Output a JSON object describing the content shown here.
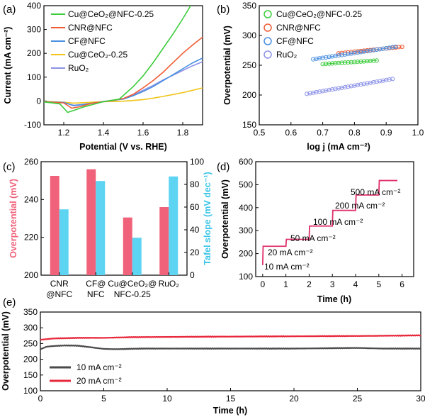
{
  "chart_data": [
    {
      "panel": "(a)",
      "type": "line",
      "title": "",
      "xlabel": "Potential (V vs. RHE)",
      "ylabel": "Current (mA cm⁻²)",
      "xlim": [
        1.1,
        1.9
      ],
      "ylim": [
        -100,
        400
      ],
      "xticks": [
        "1.2",
        "1.4",
        "1.6",
        "1.8"
      ],
      "yticks": [
        "-100",
        "0",
        "100",
        "200",
        "300",
        "400"
      ],
      "legend": "top-left",
      "series": [
        {
          "name": "Cu@CeO₂@NFC-0.25",
          "color": "#3ccc3c",
          "points": [
            [
              1.1,
              -4
            ],
            [
              1.18,
              -12
            ],
            [
              1.22,
              -48
            ],
            [
              1.25,
              -40
            ],
            [
              1.3,
              -25
            ],
            [
              1.4,
              -3
            ],
            [
              1.48,
              8
            ],
            [
              1.55,
              60
            ],
            [
              1.6,
              105
            ],
            [
              1.65,
              160
            ],
            [
              1.7,
              220
            ],
            [
              1.75,
              280
            ],
            [
              1.8,
              345
            ],
            [
              1.84,
              400
            ]
          ]
        },
        {
          "name": "CNR@NFC",
          "color": "#f05c34",
          "points": [
            [
              1.1,
              -3
            ],
            [
              1.2,
              -8
            ],
            [
              1.24,
              -30
            ],
            [
              1.28,
              -24
            ],
            [
              1.35,
              -8
            ],
            [
              1.45,
              3
            ],
            [
              1.5,
              10
            ],
            [
              1.55,
              28
            ],
            [
              1.6,
              55
            ],
            [
              1.65,
              85
            ],
            [
              1.7,
              120
            ],
            [
              1.75,
              160
            ],
            [
              1.8,
              200
            ],
            [
              1.85,
              235
            ],
            [
              1.9,
              268
            ]
          ]
        },
        {
          "name": "CF@NFC",
          "color": "#4a8fe0",
          "points": [
            [
              1.1,
              -3
            ],
            [
              1.2,
              -6
            ],
            [
              1.25,
              -20
            ],
            [
              1.3,
              -15
            ],
            [
              1.4,
              -2
            ],
            [
              1.5,
              8
            ],
            [
              1.55,
              22
            ],
            [
              1.6,
              40
            ],
            [
              1.65,
              60
            ],
            [
              1.7,
              85
            ],
            [
              1.75,
              110
            ],
            [
              1.8,
              135
            ],
            [
              1.85,
              160
            ],
            [
              1.9,
              180
            ]
          ]
        },
        {
          "name": "Cu@CeO₂-0.25",
          "color": "#f0c419",
          "points": [
            [
              1.1,
              -2
            ],
            [
              1.2,
              -5
            ],
            [
              1.25,
              -9
            ],
            [
              1.3,
              -7
            ],
            [
              1.4,
              -3
            ],
            [
              1.5,
              -1
            ],
            [
              1.55,
              2
            ],
            [
              1.6,
              6
            ],
            [
              1.65,
              12
            ],
            [
              1.7,
              19
            ],
            [
              1.75,
              27
            ],
            [
              1.8,
              35
            ],
            [
              1.85,
              45
            ],
            [
              1.9,
              55
            ]
          ]
        },
        {
          "name": "RuO₂",
          "color": "#8c92e8",
          "points": [
            [
              1.1,
              -3
            ],
            [
              1.2,
              -7
            ],
            [
              1.25,
              -18
            ],
            [
              1.3,
              -14
            ],
            [
              1.4,
              -3
            ],
            [
              1.45,
              2
            ],
            [
              1.5,
              10
            ],
            [
              1.55,
              25
            ],
            [
              1.6,
              45
            ],
            [
              1.65,
              65
            ],
            [
              1.7,
              88
            ],
            [
              1.75,
              108
            ],
            [
              1.8,
              128
            ],
            [
              1.85,
              148
            ],
            [
              1.9,
              165
            ]
          ]
        }
      ]
    },
    {
      "panel": "(b)",
      "type": "scatter",
      "title": "",
      "xlabel": "log j (mA cm⁻²)",
      "ylabel": "Overpotential (mV)",
      "xlim": [
        0.5,
        1.0
      ],
      "ylim": [
        150,
        350
      ],
      "xticks": [
        "0.5",
        "0.6",
        "0.7",
        "0.8",
        "0.9",
        "1.0"
      ],
      "yticks": [
        "150",
        "200",
        "250",
        "300",
        "350"
      ],
      "legend": "top-right",
      "series": [
        {
          "name": "Cu@CeO₂@NFC-0.25",
          "color": "#3ccc3c",
          "x_range": [
            0.7,
            0.87
          ],
          "y_range": [
            252,
            258
          ]
        },
        {
          "name": "CNR@NFC",
          "color": "#f05c34",
          "x_range": [
            0.75,
            0.95
          ],
          "y_range": [
            270,
            281
          ]
        },
        {
          "name": "CF@NFC",
          "color": "#4a8fe0",
          "x_range": [
            0.67,
            0.93
          ],
          "y_range": [
            260,
            281
          ]
        },
        {
          "name": "RuO₂",
          "color": "#8c92e8",
          "x_range": [
            0.65,
            0.92
          ],
          "y_range": [
            202,
            227
          ]
        }
      ]
    },
    {
      "panel": "(c)",
      "type": "bar",
      "title": "",
      "categories": [
        [
          "CNR",
          "@NFC"
        ],
        [
          "CF@",
          "NFC"
        ],
        [
          "Cu@CeO₂@",
          "NFC-0.25"
        ],
        [
          "RuO₂"
        ]
      ],
      "ylabel": "Overpotential (mV)",
      "y2label": "Tafel slope (mV dec⁻¹)",
      "ylim": [
        200,
        260
      ],
      "y2lim": [
        0,
        100
      ],
      "yticks": [
        "200",
        "220",
        "240",
        "260"
      ],
      "y2ticks": [
        "0",
        "20",
        "40",
        "60",
        "80",
        "100"
      ],
      "series": [
        {
          "name": "Overpotential",
          "axis": "left",
          "color": "#f0627a",
          "values": [
            252.5,
            256,
            230.5,
            236
          ]
        },
        {
          "name": "Tafel slope",
          "axis": "right",
          "color": "#5dd4f2",
          "values": [
            58,
            83,
            33,
            87
          ]
        }
      ]
    },
    {
      "panel": "(d)",
      "type": "line",
      "title": "",
      "xlabel": "Time (h)",
      "ylabel": "Overpotential (mV)",
      "xlim": [
        -0.3,
        6.5
      ],
      "ylim": [
        100,
        600
      ],
      "xticks": [
        "0",
        "1",
        "2",
        "3",
        "4",
        "5",
        "6"
      ],
      "yticks": [
        "100",
        "200",
        "300",
        "400",
        "500",
        "600"
      ],
      "color": "#e0306a",
      "steps": [
        {
          "t0": 0,
          "t1": 1,
          "value": 232,
          "label": "10 mA cm⁻²"
        },
        {
          "t0": 1,
          "t1": 2,
          "value": 262,
          "label": "20 mA cm⁻²"
        },
        {
          "t0": 2,
          "t1": 3,
          "value": 320,
          "label": "50 mA cm⁻²"
        },
        {
          "t0": 3,
          "t1": 4,
          "value": 388,
          "label": "100 mA cm⁻²"
        },
        {
          "t0": 4,
          "t1": 5,
          "value": 455,
          "label": "200 mA cm⁻²"
        },
        {
          "t0": 5,
          "t1": 5.8,
          "value": 518,
          "label": "500 mA cm⁻²"
        }
      ],
      "start_value": 150
    },
    {
      "panel": "(e)",
      "type": "line",
      "title": "",
      "xlabel": "Time (h)",
      "ylabel": "Overpotential (mV)",
      "xlim": [
        0,
        30
      ],
      "ylim": [
        100,
        350
      ],
      "xticks": [
        "0",
        "5",
        "10",
        "15",
        "20",
        "25",
        "30"
      ],
      "yticks": [
        "100",
        "150",
        "200",
        "250",
        "300",
        "350"
      ],
      "legend": "bottom-left",
      "series": [
        {
          "name": "10 mA cm⁻²",
          "color": "#4a4a4a",
          "points": [
            [
              0,
              232
            ],
            [
              0.5,
              240
            ],
            [
              1,
              242
            ],
            [
              2,
              244
            ],
            [
              3,
              243
            ],
            [
              4,
              238
            ],
            [
              5,
              233
            ],
            [
              6,
              232
            ],
            [
              8,
              234
            ],
            [
              10,
              234
            ],
            [
              15,
              234
            ],
            [
              20,
              234
            ],
            [
              25,
              236
            ],
            [
              27,
              234
            ],
            [
              30,
              234
            ]
          ]
        },
        {
          "name": "20 mA cm⁻²",
          "color": "#e8283c",
          "points": [
            [
              0,
              262
            ],
            [
              1,
              266
            ],
            [
              3,
              268
            ],
            [
              5,
              268
            ],
            [
              7,
              270
            ],
            [
              10,
              271
            ],
            [
              15,
              272
            ],
            [
              20,
              273
            ],
            [
              25,
              274
            ],
            [
              28,
              275
            ],
            [
              30,
              276
            ]
          ]
        }
      ]
    }
  ]
}
